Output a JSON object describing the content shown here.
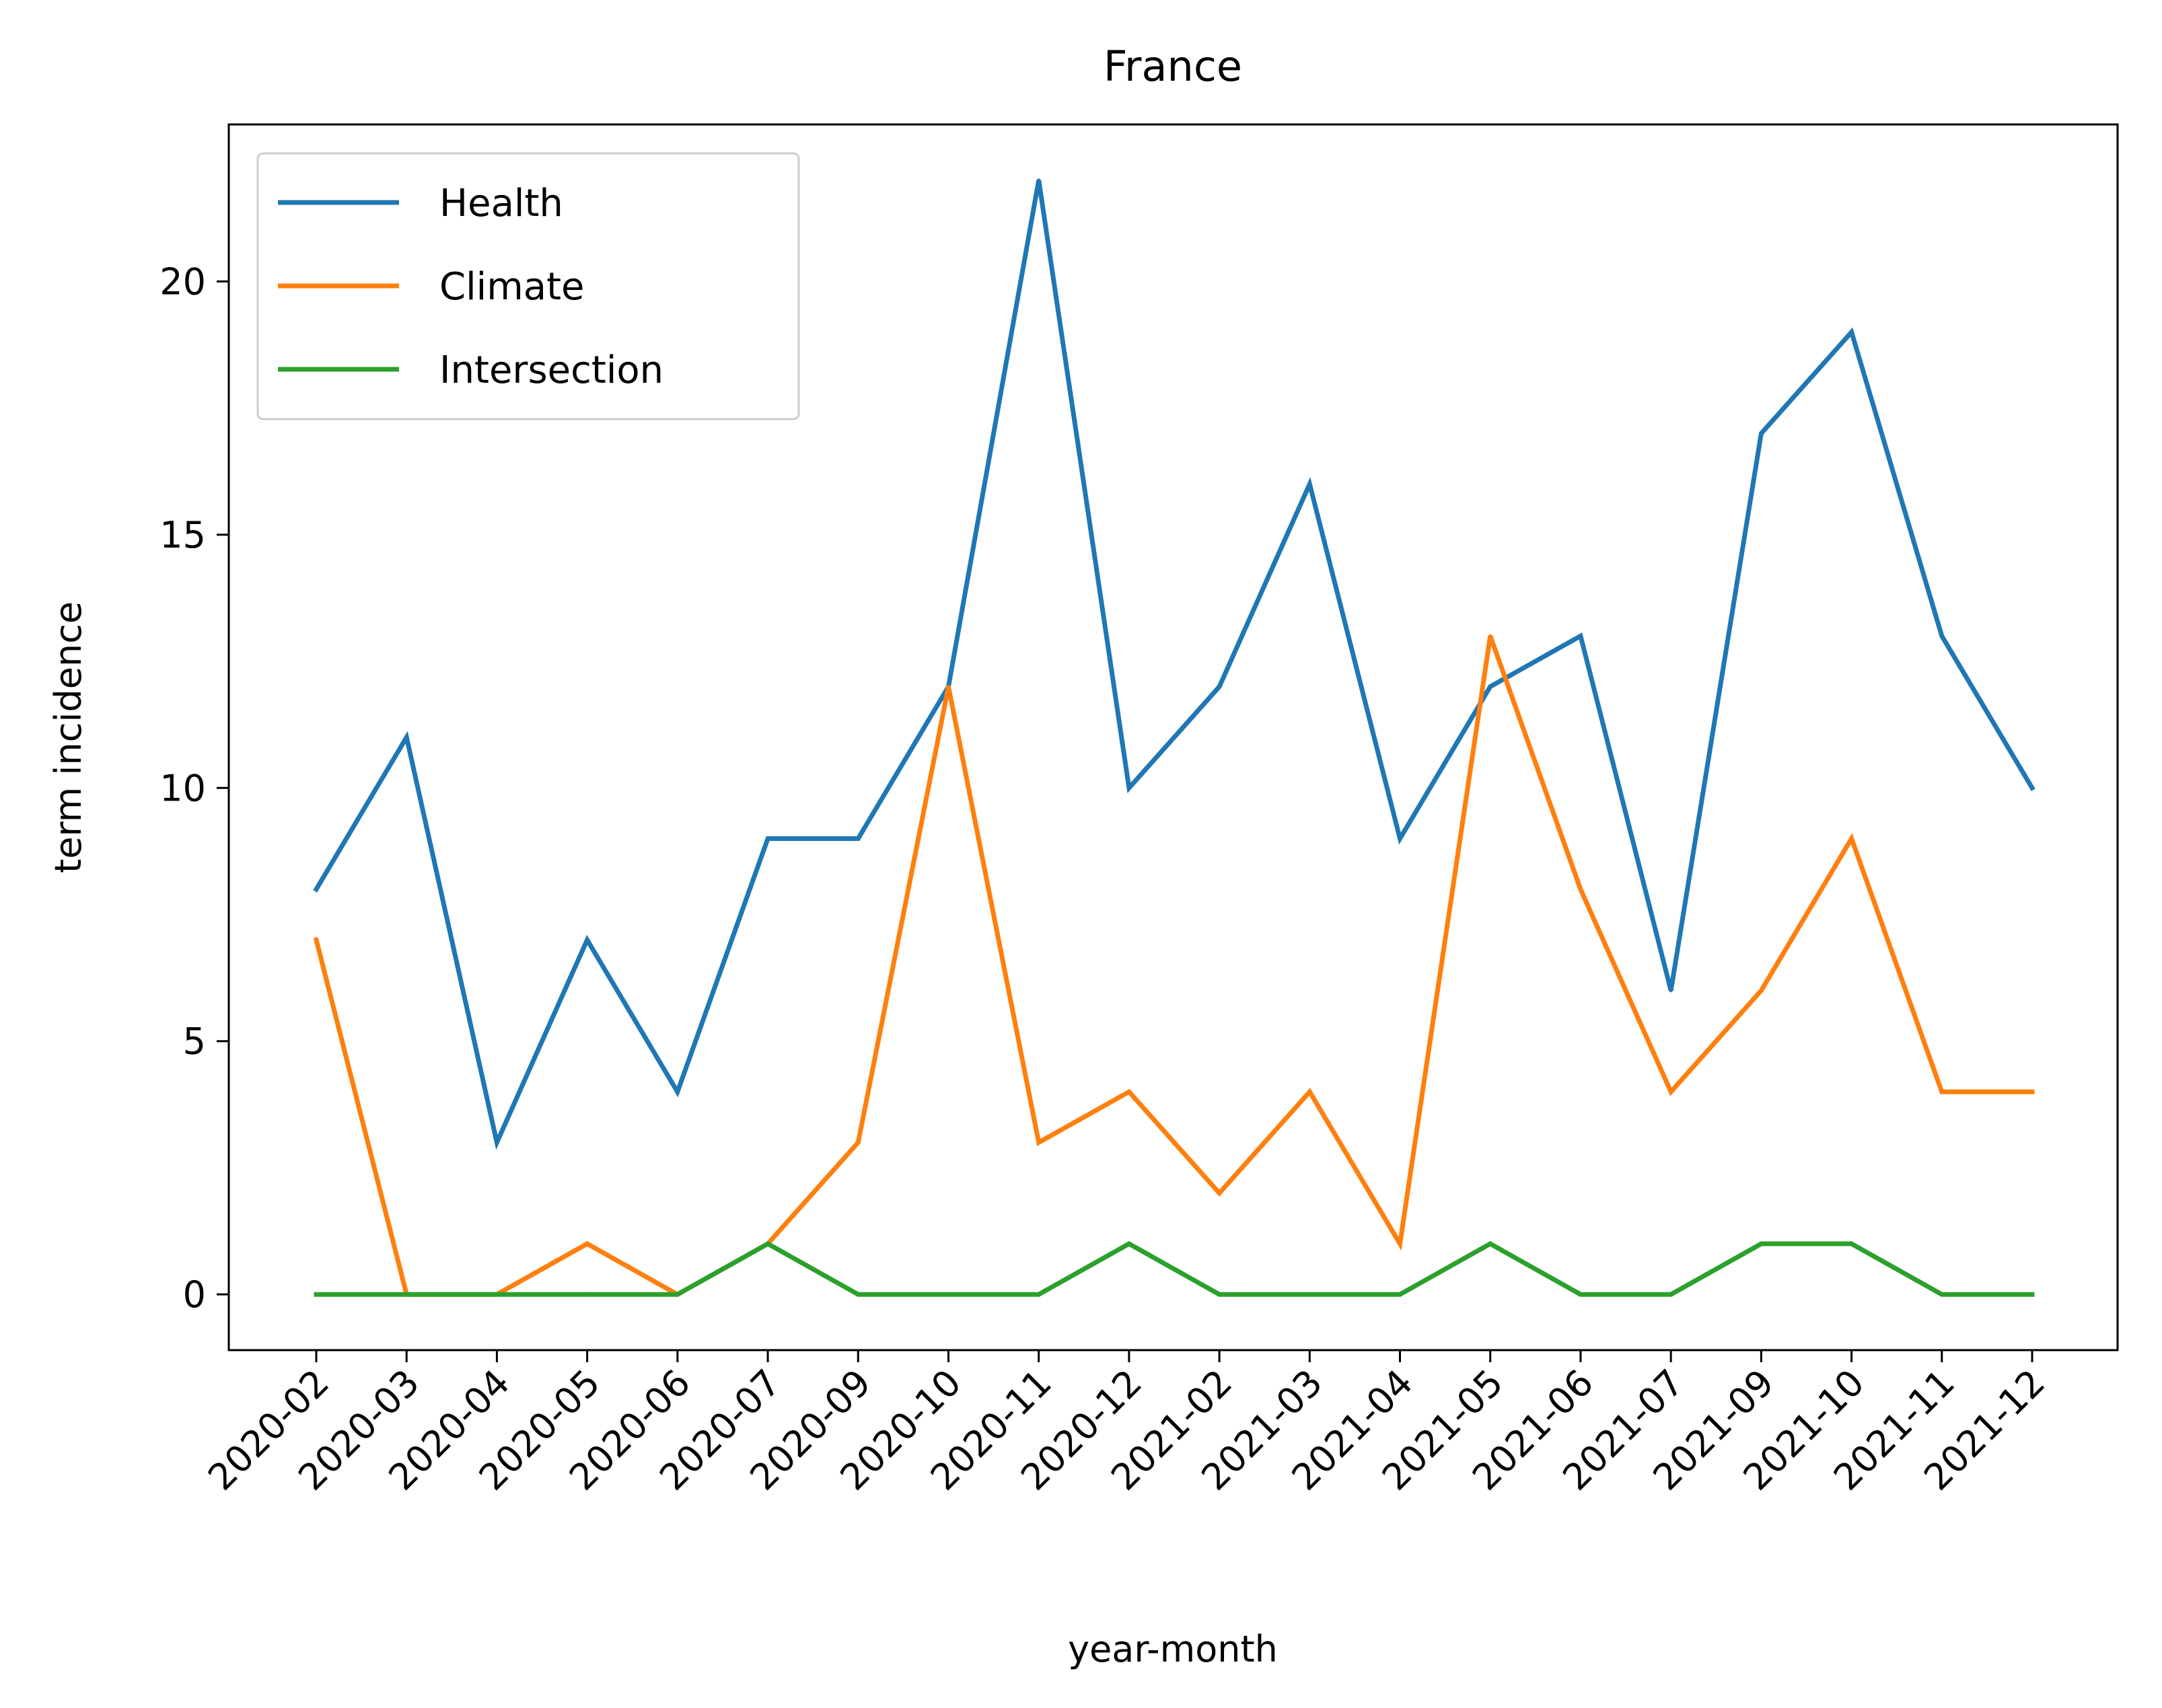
{
  "chart_data": {
    "type": "line",
    "title": "France",
    "xlabel": "year-month",
    "ylabel": "term incidence",
    "categories": [
      "2020-02",
      "2020-03",
      "2020-04",
      "2020-05",
      "2020-06",
      "2020-07",
      "2020-09",
      "2020-10",
      "2020-11",
      "2020-12",
      "2021-02",
      "2021-03",
      "2021-04",
      "2021-05",
      "2021-06",
      "2021-07",
      "2021-09",
      "2021-10",
      "2021-11",
      "2021-12"
    ],
    "series": [
      {
        "name": "Health",
        "color": "#1f77b4",
        "values": [
          8,
          11,
          3,
          7,
          4,
          9,
          9,
          12,
          22,
          10,
          12,
          16,
          9,
          12,
          13,
          6,
          17,
          19,
          13,
          10
        ]
      },
      {
        "name": "Climate",
        "color": "#ff7f0e",
        "values": [
          7,
          0,
          0,
          1,
          0,
          1,
          3,
          12,
          3,
          4,
          2,
          4,
          1,
          13,
          8,
          4,
          6,
          9,
          4,
          4
        ]
      },
      {
        "name": "Intersection",
        "color": "#2ca02c",
        "values": [
          0,
          0,
          0,
          0,
          0,
          1,
          0,
          0,
          0,
          1,
          0,
          0,
          0,
          1,
          0,
          0,
          1,
          1,
          0,
          0
        ]
      }
    ],
    "yticks": [
      "0",
      "5",
      "10",
      "15",
      "20"
    ],
    "ylim": [
      -1.1,
      23.1
    ],
    "grid": false,
    "legend_position": "upper-left"
  }
}
